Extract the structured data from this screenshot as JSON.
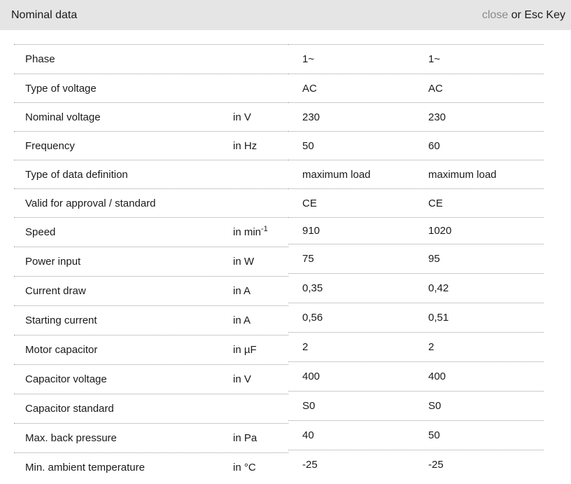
{
  "header": {
    "title": "Nominal data",
    "close_label": "close",
    "esc_hint": "or Esc Key"
  },
  "colors": {
    "header_bg": "#e5e5e5",
    "text": "#1a1a1a",
    "close_link": "#8a8a8a",
    "separator": "#999999"
  },
  "table": {
    "rows": [
      {
        "label": "Phase",
        "unit": "",
        "unit_sup": "",
        "values": [
          "1~",
          "1~"
        ]
      },
      {
        "label": "Type of voltage",
        "unit": "",
        "unit_sup": "",
        "values": [
          "AC",
          "AC"
        ]
      },
      {
        "label": "Nominal voltage",
        "unit": "in V",
        "unit_sup": "",
        "values": [
          "230",
          "230"
        ]
      },
      {
        "label": "Frequency",
        "unit": "in Hz",
        "unit_sup": "",
        "values": [
          "50",
          "60"
        ]
      },
      {
        "label": "Type of data definition",
        "unit": "",
        "unit_sup": "",
        "values": [
          "maximum load",
          "maximum load"
        ]
      },
      {
        "label": "Valid for approval / standard",
        "unit": "",
        "unit_sup": "",
        "values": [
          "CE",
          "CE"
        ]
      },
      {
        "label": "Speed",
        "unit": "in min",
        "unit_sup": "-1",
        "values": [
          "910",
          "1020"
        ]
      },
      {
        "label": "Power input",
        "unit": "in W",
        "unit_sup": "",
        "values": [
          "75",
          "95"
        ]
      },
      {
        "label": "Current draw",
        "unit": "in A",
        "unit_sup": "",
        "values": [
          "0,35",
          "0,42"
        ]
      },
      {
        "label": "Starting current",
        "unit": "in A",
        "unit_sup": "",
        "values": [
          "0,56",
          "0,51"
        ]
      },
      {
        "label": "Motor capacitor",
        "unit": "in µF",
        "unit_sup": "",
        "values": [
          "2",
          "2"
        ]
      },
      {
        "label": "Capacitor voltage",
        "unit": "in V",
        "unit_sup": "",
        "values": [
          "400",
          "400"
        ]
      },
      {
        "label": "Capacitor standard",
        "unit": "",
        "unit_sup": "",
        "values": [
          "S0",
          "S0"
        ]
      },
      {
        "label": "Max. back pressure",
        "unit": "in Pa",
        "unit_sup": "",
        "values": [
          "40",
          "50"
        ]
      },
      {
        "label": "Min. ambient temperature",
        "unit": "in °C",
        "unit_sup": "",
        "values": [
          "-25",
          "-25"
        ]
      }
    ]
  }
}
